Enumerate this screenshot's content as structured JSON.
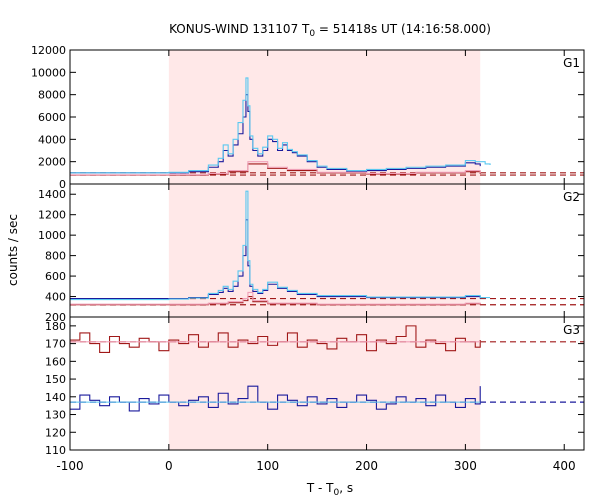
{
  "chart_data": {
    "type": "line",
    "title_main": "KONUS-WIND 131107 T",
    "title_sub": "0",
    "title_rest": " = 51418s UT (14:16:58.000)",
    "xlabel_main": "T - T",
    "xlabel_sub": "0",
    "xlabel_rest": ", s",
    "ylabel": "counts / sec",
    "xlim": [
      -100,
      420
    ],
    "x_ticks": [
      -100,
      0,
      100,
      200,
      300,
      400
    ],
    "x_tick_labels": [
      "-100",
      "0",
      "100",
      "200",
      "300",
      "400"
    ],
    "highlight_interval": [
      0,
      315
    ],
    "highlight_color": "#ffe8e8",
    "colors": {
      "dark_blue": "#1a1a9c",
      "light_blue": "#5ac8f0",
      "dark_red": "#a01818",
      "pink": "#f0a0b8"
    },
    "panels": [
      {
        "name": "G1",
        "ylim": [
          0,
          12000
        ],
        "y_ticks": [
          0,
          2000,
          4000,
          6000,
          8000,
          10000,
          12000
        ],
        "y_tick_labels": [
          "0",
          "2000",
          "4000",
          "6000",
          "8000",
          "10000",
          "12000"
        ],
        "background_levels": [
          1000,
          800
        ],
        "series": [
          {
            "x": [
              -100,
              -50,
              0,
              20,
              40,
              50,
              55,
              60,
              65,
              70,
              75,
              78,
              80,
              82,
              85,
              90,
              95,
              100,
              105,
              110,
              115,
              120,
              125,
              130,
              140,
              150,
              160,
              180,
              200,
              220,
              240,
              260,
              280,
              300,
              310,
              315
            ],
            "y": [
              1000,
              1000,
              1000,
              1100,
              1500,
              2000,
              3000,
              2500,
              3500,
              4500,
              6000,
              8000,
              6500,
              4000,
              3000,
              2500,
              3000,
              4000,
              3800,
              3000,
              3500,
              3000,
              2800,
              2500,
              2000,
              1500,
              1300,
              1100,
              1200,
              1300,
              1400,
              1500,
              1600,
              1900,
              1800,
              1600
            ]
          },
          {
            "x": [
              -100,
              -50,
              0,
              20,
              40,
              50,
              55,
              60,
              65,
              70,
              75,
              78,
              80,
              82,
              85,
              90,
              95,
              100,
              105,
              110,
              115,
              120,
              125,
              130,
              140,
              150,
              160,
              180,
              200,
              220,
              240,
              260,
              280,
              300,
              310,
              320,
              325
            ],
            "y": [
              1000,
              1000,
              1050,
              1200,
              1700,
              2300,
              3500,
              2700,
              4000,
              5500,
              7500,
              9500,
              7000,
              4300,
              3200,
              2700,
              3300,
              4300,
              4000,
              3200,
              3700,
              3100,
              2900,
              2600,
              2100,
              1600,
              1400,
              1200,
              1300,
              1400,
              1500,
              1600,
              1700,
              2100,
              2000,
              1800,
              1700
            ]
          },
          {
            "x": [
              -100,
              0,
              40,
              60,
              80,
              100,
              120,
              150,
              200,
              250,
              300,
              315
            ],
            "y": [
              800,
              800,
              900,
              1100,
              1800,
              1400,
              1200,
              1000,
              900,
              1000,
              1100,
              900
            ]
          },
          {
            "x": [
              -100,
              0,
              40,
              60,
              80,
              100,
              120,
              150,
              200,
              250,
              300,
              315
            ],
            "y": [
              820,
              830,
              950,
              1200,
              2000,
              1500,
              1300,
              1050,
              950,
              1050,
              1200,
              950
            ]
          }
        ]
      },
      {
        "name": "G2",
        "ylim": [
          200,
          1500
        ],
        "y_ticks": [
          200,
          400,
          600,
          800,
          1000,
          1200,
          1400
        ],
        "y_tick_labels": [
          "200",
          "400",
          "600",
          "800",
          "1000",
          "1200",
          "1400"
        ],
        "background_levels": [
          380,
          320
        ],
        "series": [
          {
            "x": [
              -100,
              -50,
              0,
              20,
              40,
              50,
              55,
              60,
              65,
              70,
              75,
              78,
              80,
              82,
              85,
              90,
              95,
              100,
              110,
              120,
              130,
              150,
              200,
              250,
              300,
              315
            ],
            "y": [
              380,
              380,
              380,
              390,
              420,
              440,
              480,
              450,
              500,
              600,
              800,
              1150,
              700,
              500,
              450,
              430,
              460,
              520,
              480,
              450,
              420,
              400,
              390,
              390,
              400,
              380
            ]
          },
          {
            "x": [
              -100,
              -50,
              0,
              20,
              40,
              50,
              55,
              60,
              65,
              70,
              75,
              78,
              80,
              82,
              85,
              90,
              95,
              100,
              110,
              120,
              130,
              150,
              200,
              250,
              300,
              315,
              325
            ],
            "y": [
              370,
              370,
              375,
              385,
              430,
              460,
              500,
              470,
              550,
              650,
              900,
              1430,
              750,
              520,
              470,
              440,
              470,
              540,
              490,
              460,
              430,
              410,
              395,
              395,
              410,
              390,
              390
            ]
          },
          {
            "x": [
              -100,
              0,
              40,
              60,
              75,
              80,
              85,
              100,
              150,
              200,
              250,
              300,
              315
            ],
            "y": [
              320,
              320,
              330,
              340,
              360,
              400,
              350,
              330,
              320,
              320,
              320,
              330,
              320
            ]
          },
          {
            "x": [
              -100,
              0,
              40,
              60,
              75,
              80,
              85,
              100,
              150,
              200,
              250,
              300,
              315
            ],
            "y": [
              325,
              325,
              335,
              350,
              380,
              440,
              360,
              335,
              325,
              325,
              325,
              335,
              325
            ]
          }
        ]
      },
      {
        "name": "G3",
        "ylim": [
          110,
          185
        ],
        "y_ticks": [
          110,
          120,
          130,
          140,
          150,
          160,
          170,
          180
        ],
        "y_tick_labels": [
          "110",
          "120",
          "130",
          "140",
          "150",
          "160",
          "170",
          "180"
        ],
        "background_levels": [
          171,
          137
        ],
        "series": [
          {
            "x": [
              -100,
              -90,
              -80,
              -70,
              -60,
              -50,
              -40,
              -30,
              -20,
              -10,
              0,
              10,
              20,
              30,
              40,
              50,
              60,
              70,
              80,
              90,
              100,
              110,
              120,
              130,
              140,
              150,
              160,
              170,
              180,
              190,
              200,
              210,
              220,
              230,
              240,
              250,
              260,
              270,
              280,
              290,
              300,
              310,
              315
            ],
            "y": [
              172,
              176,
              170,
              165,
              174,
              170,
              168,
              173,
              171,
              166,
              172,
              170,
              175,
              168,
              171,
              176,
              168,
              172,
              170,
              174,
              169,
              171,
              176,
              168,
              172,
              170,
              167,
              173,
              171,
              175,
              166,
              172,
              170,
              174,
              180,
              168,
              172,
              170,
              166,
              173,
              171,
              168,
              172
            ]
          },
          {
            "x": [
              -100,
              0,
              315
            ],
            "y": [
              171,
              171,
              171
            ]
          },
          {
            "x": [
              -100,
              -90,
              -80,
              -70,
              -60,
              -50,
              -40,
              -30,
              -20,
              -10,
              0,
              10,
              20,
              30,
              40,
              50,
              60,
              70,
              80,
              90,
              100,
              110,
              120,
              130,
              140,
              150,
              160,
              170,
              180,
              190,
              200,
              210,
              220,
              230,
              240,
              250,
              260,
              270,
              280,
              290,
              300,
              310,
              315
            ],
            "y": [
              133,
              141,
              138,
              135,
              140,
              137,
              132,
              139,
              136,
              141,
              137,
              135,
              138,
              140,
              134,
              142,
              136,
              139,
              146,
              137,
              133,
              141,
              138,
              135,
              140,
              136,
              139,
              134,
              137,
              141,
              138,
              133,
              136,
              140,
              137,
              139,
              135,
              141,
              137,
              134,
              139,
              136,
              146
            ]
          },
          {
            "x": [
              -100,
              0,
              315
            ],
            "y": [
              137,
              137,
              137
            ]
          }
        ]
      }
    ]
  }
}
